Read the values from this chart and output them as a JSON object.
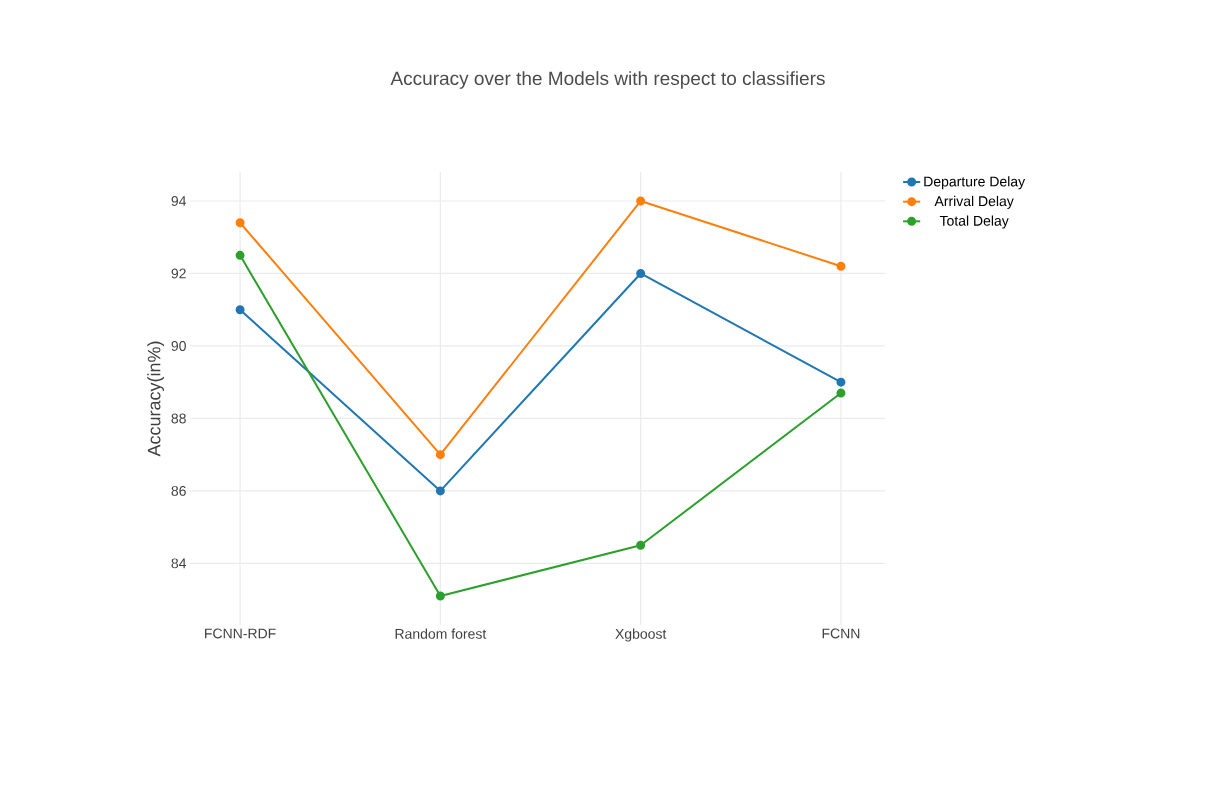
{
  "chart_data": {
    "type": "line",
    "title": "Accuracy over the Models with respect to classifiers",
    "ylabel": "Accuracy(in%)",
    "categories": [
      "FCNN-RDF",
      "Random forest",
      "Xgboost",
      "FCNN"
    ],
    "series": [
      {
        "name": "Departure Delay",
        "color": "#1f77b4",
        "values": [
          91,
          86,
          92,
          89
        ]
      },
      {
        "name": "Arrival Delay",
        "color": "#ff7f0e",
        "values": [
          93.4,
          87,
          94,
          92.2
        ]
      },
      {
        "name": "Total Delay",
        "color": "#2ca02c",
        "values": [
          92.5,
          83.1,
          84.5,
          88.7
        ]
      }
    ],
    "ylim": [
      82.3,
      94.8
    ],
    "yticks": [
      84,
      86,
      88,
      90,
      92,
      94
    ],
    "grid": true,
    "legend": "top right",
    "marker": "circle",
    "line_style": "solid"
  }
}
